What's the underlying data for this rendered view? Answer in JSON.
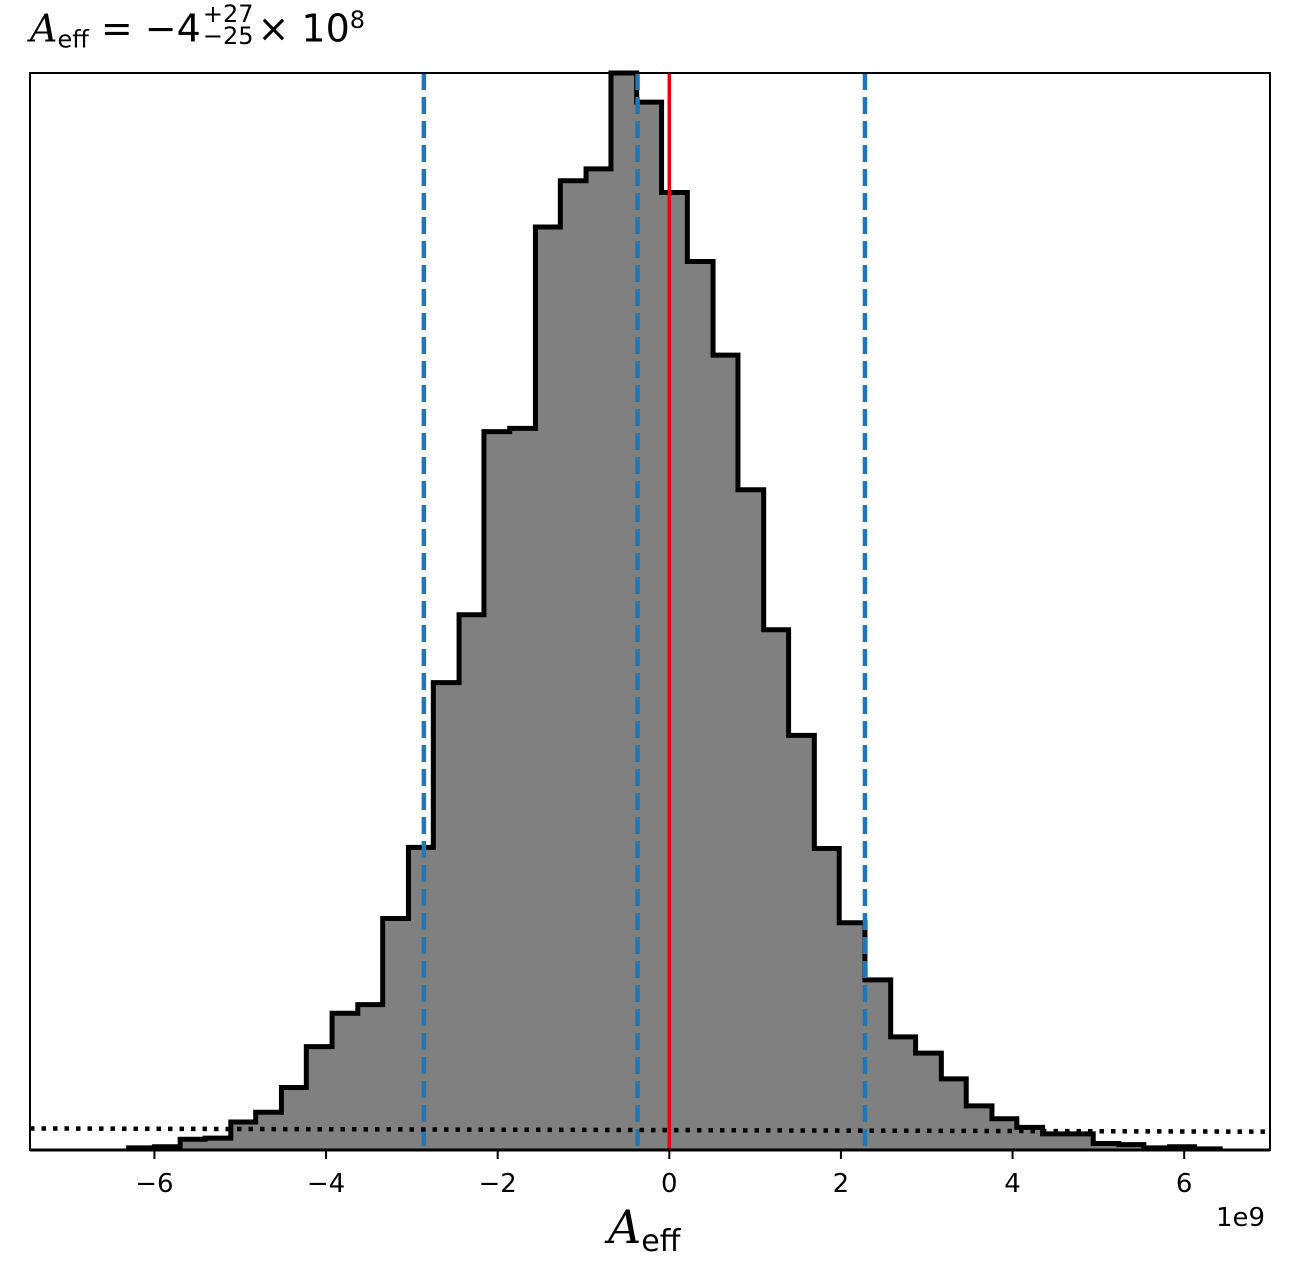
{
  "chart_data": {
    "type": "histogram",
    "title": {
      "symbol": "A",
      "subscript": "eff",
      "equals": "=",
      "central": "−4",
      "plus_err": "+27",
      "minus_err": "−25",
      "multiplier": "× 10",
      "exponent": "8"
    },
    "xlabel": {
      "symbol": "A",
      "subscript": "eff"
    },
    "x_offset_label": "1e9",
    "xlim": [
      -7.45,
      7.0
    ],
    "ylim": [
      0,
      1.0
    ],
    "xticks": [
      {
        "value": -6,
        "label": "−6"
      },
      {
        "value": -4,
        "label": "−4"
      },
      {
        "value": -2,
        "label": "−2"
      },
      {
        "value": 0,
        "label": "0"
      },
      {
        "value": 2,
        "label": "2"
      },
      {
        "value": 4,
        "label": "4"
      },
      {
        "value": 6,
        "label": "6"
      }
    ],
    "bin_edges": [
      -6.3,
      -6.0,
      -5.7,
      -5.41,
      -5.11,
      -4.82,
      -4.52,
      -4.23,
      -3.93,
      -3.63,
      -3.34,
      -3.04,
      -2.75,
      -2.45,
      -2.16,
      -1.86,
      -1.56,
      -1.27,
      -0.97,
      -0.68,
      -0.38,
      -0.09,
      0.21,
      0.51,
      0.8,
      1.1,
      1.39,
      1.69,
      1.98,
      2.28,
      2.58,
      2.87,
      3.17,
      3.46,
      3.76,
      4.05,
      4.35,
      4.65,
      4.94,
      5.24,
      5.53,
      5.83,
      6.12,
      6.42
    ],
    "counts": [
      0.002,
      0.003,
      0.01,
      0.011,
      0.026,
      0.035,
      0.058,
      0.096,
      0.127,
      0.135,
      0.215,
      0.281,
      0.434,
      0.497,
      0.667,
      0.67,
      0.857,
      0.9,
      0.911,
      1.0,
      0.973,
      0.889,
      0.825,
      0.738,
      0.613,
      0.483,
      0.385,
      0.28,
      0.211,
      0.158,
      0.105,
      0.09,
      0.066,
      0.041,
      0.029,
      0.021,
      0.015,
      0.015,
      0.006,
      0.005,
      0.002,
      0.003,
      0.001
    ],
    "vlines": [
      {
        "x": -2.86,
        "color": "#1f77b4",
        "style": "dashed"
      },
      {
        "x": -0.37,
        "color": "#1f77b4",
        "style": "dashed"
      },
      {
        "x": 2.28,
        "color": "#1f77b4",
        "style": "dashed"
      },
      {
        "x": 0.0,
        "color": "#e8000b",
        "style": "solid"
      }
    ],
    "prior_line": {
      "y_start": 0.02,
      "y_end": 0.017,
      "color": "#000000",
      "style": "dotted"
    },
    "colors": {
      "fill": "#808080",
      "edge": "#000000"
    },
    "grid": false,
    "legend": "none"
  }
}
